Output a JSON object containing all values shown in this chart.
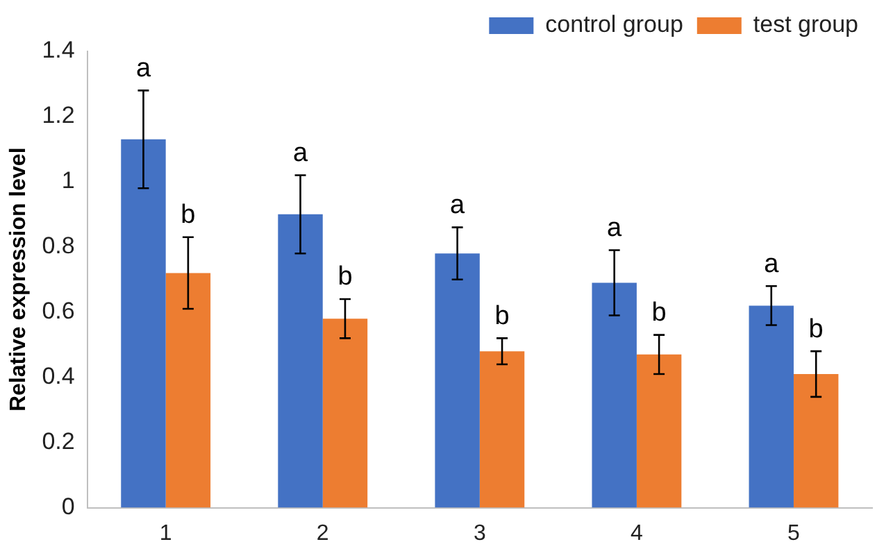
{
  "chart_data": {
    "type": "bar",
    "ylabel": "Relative expression level",
    "categories": [
      "1",
      "2",
      "3",
      "4",
      "5"
    ],
    "series": [
      {
        "name": "control group",
        "color": "#4472c4",
        "values": [
          1.13,
          0.9,
          0.78,
          0.69,
          0.62
        ],
        "errors": [
          0.15,
          0.12,
          0.08,
          0.1,
          0.06
        ]
      },
      {
        "name": "test group",
        "color": "#ed7d31",
        "values": [
          0.72,
          0.58,
          0.48,
          0.47,
          0.41
        ],
        "errors": [
          0.11,
          0.06,
          0.04,
          0.06,
          0.07
        ]
      }
    ],
    "ylim": [
      0,
      1.4
    ],
    "yticks": [
      0,
      0.2,
      0.4,
      0.6,
      0.8,
      1,
      1.2,
      1.4
    ],
    "grid": false,
    "legend": "top",
    "annotations": [
      "a",
      "b",
      "a",
      "b",
      "a",
      "b",
      "a",
      "b",
      "a",
      "b"
    ]
  }
}
